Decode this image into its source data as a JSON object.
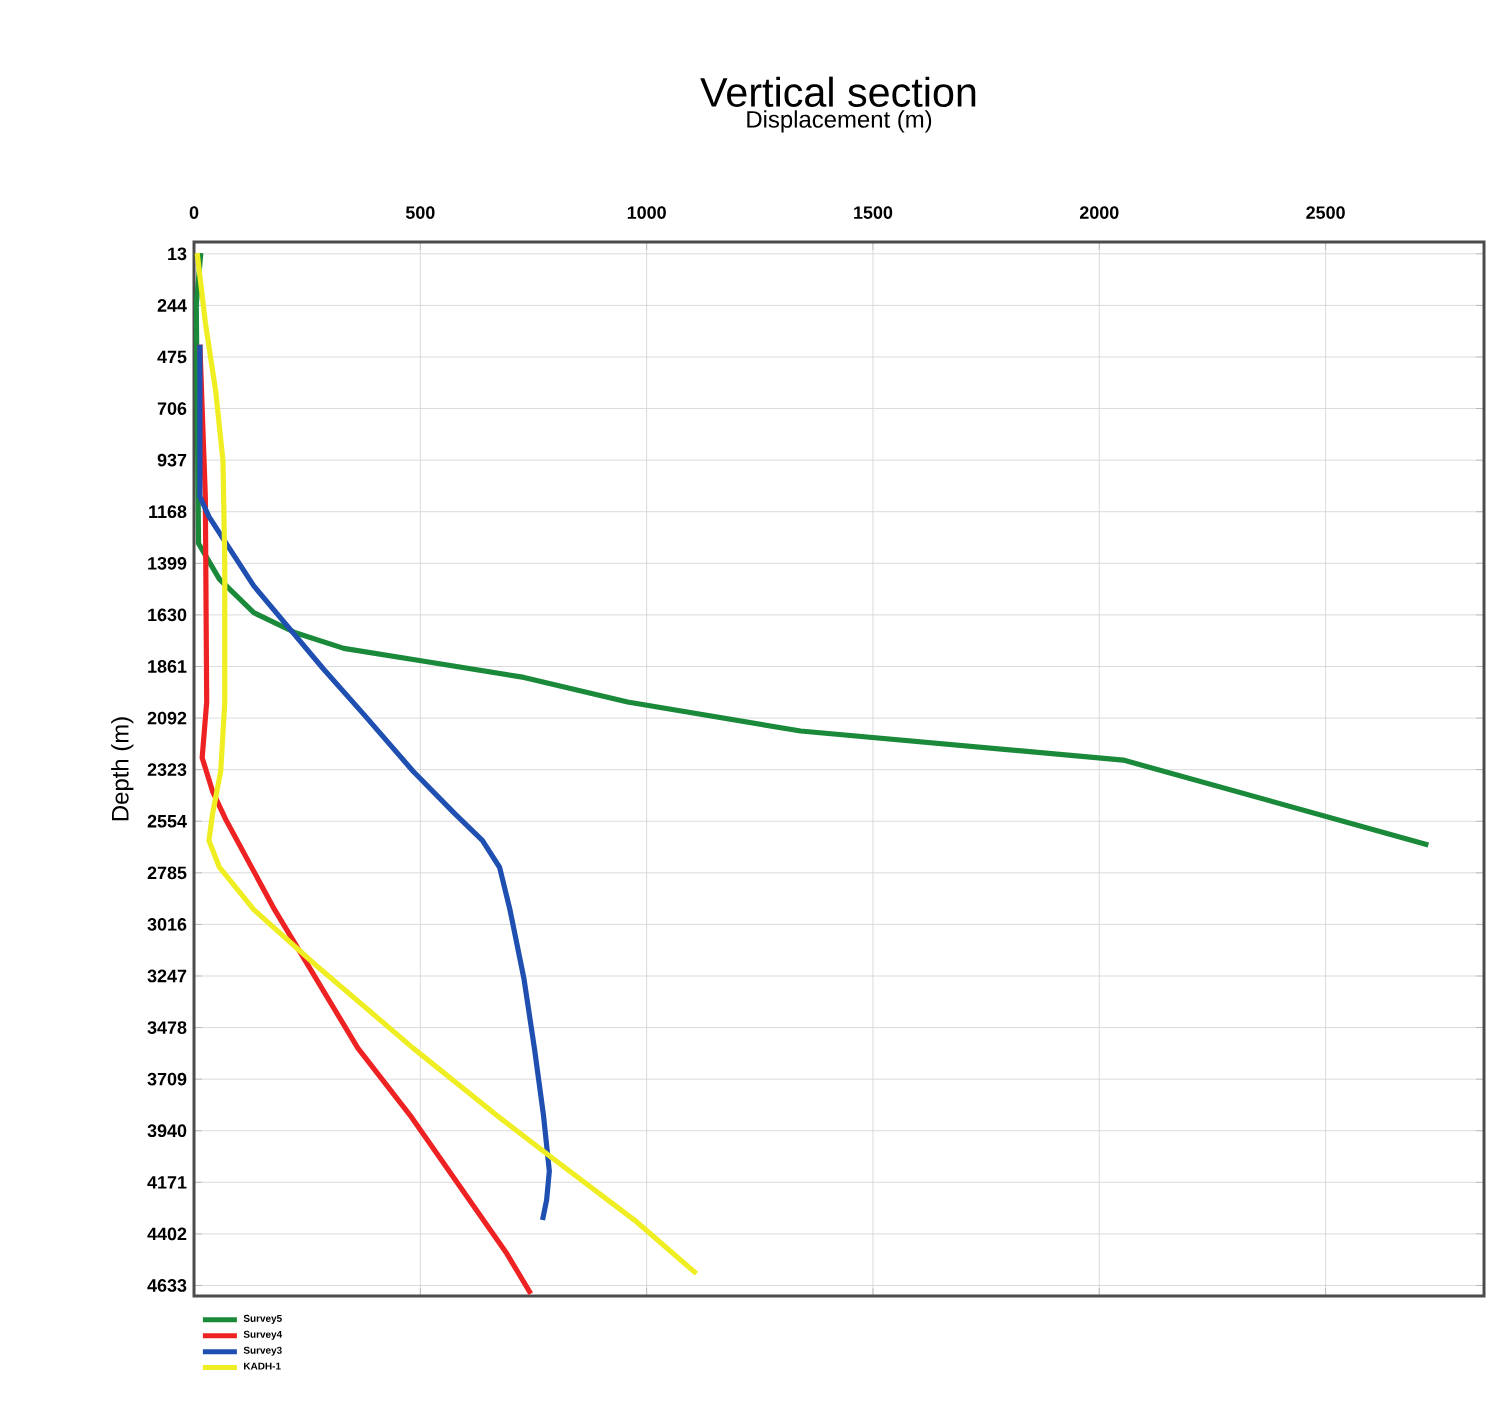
{
  "chart_data": {
    "type": "line",
    "title": "Vertical section",
    "xlabel": "Displacement (m)",
    "ylabel": "Depth (m)",
    "xlim": [
      0,
      2850
    ],
    "xticks": [
      0,
      500,
      1000,
      1500,
      2000,
      2500
    ],
    "ylim": [
      4680,
      -40
    ],
    "yticks": [
      13,
      244,
      475,
      706,
      937,
      1168,
      1399,
      1630,
      1861,
      2092,
      2323,
      2554,
      2785,
      3016,
      3247,
      3478,
      3709,
      3940,
      4171,
      4402,
      4633
    ],
    "grid": true,
    "legend": "bottom",
    "marker": "none",
    "line_style": "solid",
    "series": [
      {
        "name": "Survey5",
        "color": "#1a8a3a",
        "x": [
          15,
          5,
          10,
          56,
          132,
          224,
          331,
          515,
          729,
          958,
          1340,
          2053,
          2727
        ],
        "values": [
          10,
          240,
          1310,
          1470,
          1620,
          1710,
          1780,
          1840,
          1910,
          2020,
          2150,
          2280,
          2660
        ]
      },
      {
        "name": "Survey4",
        "color": "#ee2222",
        "x": [
          13,
          25,
          28,
          18,
          41,
          71,
          178,
          270,
          362,
          477,
          584,
          691,
          744
        ],
        "values": [
          420,
          1100,
          2020,
          2270,
          2420,
          2550,
          2950,
          3260,
          3570,
          3870,
          4180,
          4490,
          4670
        ]
      },
      {
        "name": "Survey3",
        "color": "#1f4fb0",
        "x": [
          13,
          13,
          33,
          71,
          132,
          194,
          285,
          377,
          484,
          576,
          637,
          675,
          698,
          729,
          752,
          772,
          785,
          779,
          770
        ],
        "values": [
          420,
          1100,
          1190,
          1310,
          1500,
          1650,
          1870,
          2080,
          2330,
          2520,
          2640,
          2760,
          2950,
          3260,
          3570,
          3870,
          4120,
          4250,
          4340
        ]
      },
      {
        "name": "KADH-1",
        "color": "#eeee22",
        "x": [
          7,
          25,
          48,
          64,
          68,
          68,
          59,
          41,
          33,
          56,
          132,
          270,
          484,
          668,
          790,
          973,
          1110
        ],
        "values": [
          10,
          320,
          630,
          940,
          1400,
          2020,
          2330,
          2520,
          2640,
          2760,
          2950,
          3200,
          3570,
          3870,
          4060,
          4340,
          4580
        ]
      }
    ]
  }
}
